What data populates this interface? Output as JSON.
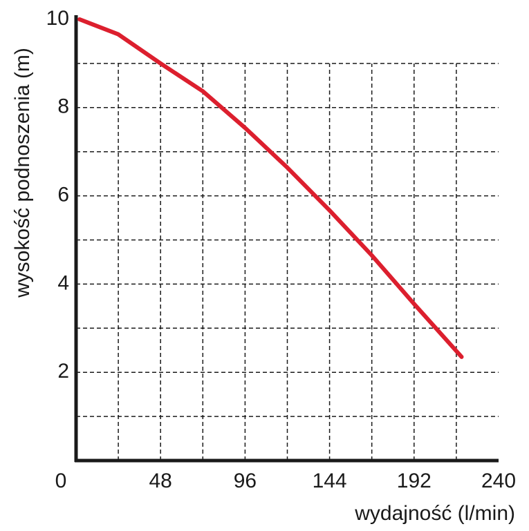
{
  "chart_data": {
    "type": "line",
    "xlabel": "wydajność (l/min)",
    "ylabel": "wysokość podnoszenia (m)",
    "x": [
      2,
      24,
      48,
      72,
      96,
      120,
      144,
      168,
      192,
      219
    ],
    "series": [
      {
        "color": "#dc1f2e",
        "values": [
          10,
          9.66,
          9.0,
          8.37,
          7.54,
          6.64,
          5.67,
          4.65,
          3.55,
          2.35
        ]
      }
    ],
    "xlim": [
      0,
      240
    ],
    "ylim": [
      0,
      10
    ],
    "xticks": [
      0,
      48,
      96,
      144,
      192,
      240
    ],
    "yticks": [
      2,
      4,
      6,
      8,
      10
    ],
    "xminor": [
      24,
      72,
      120,
      168,
      216
    ],
    "yminor": [
      1,
      3,
      5,
      7,
      9
    ],
    "grid": true
  }
}
